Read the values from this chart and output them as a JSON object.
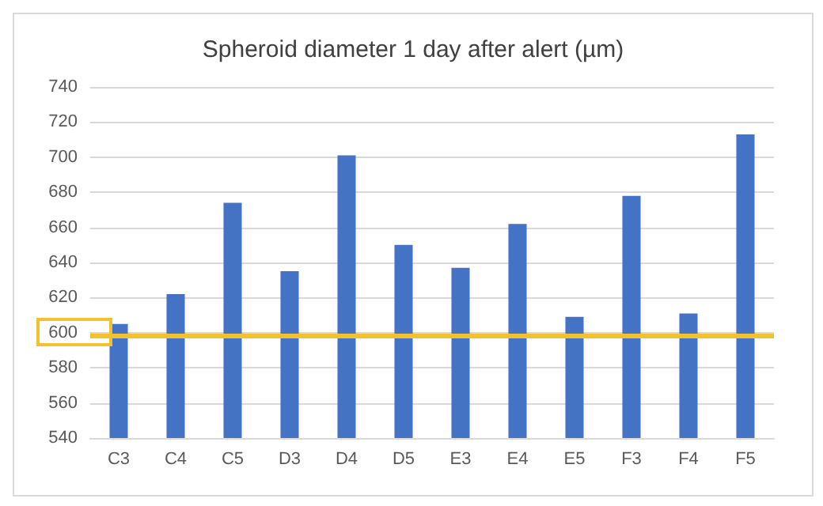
{
  "chart_data": {
    "type": "bar",
    "title": "Spheroid diameter 1 day after alert (µm)",
    "categories": [
      "C3",
      "C4",
      "C5",
      "D3",
      "D4",
      "D5",
      "E3",
      "E4",
      "E5",
      "F3",
      "F4",
      "F5"
    ],
    "values": [
      605,
      622,
      674,
      635,
      701,
      650,
      637,
      662,
      609,
      678,
      611,
      713
    ],
    "color": "#4472c4",
    "ylim": [
      540,
      740
    ],
    "yticks": [
      540,
      560,
      580,
      600,
      620,
      640,
      660,
      680,
      700,
      720,
      740
    ],
    "grid": "y",
    "ref_lines": [
      {
        "axis": "y",
        "value": 598,
        "color": "#f2c12e",
        "line_style": "solid"
      }
    ]
  }
}
